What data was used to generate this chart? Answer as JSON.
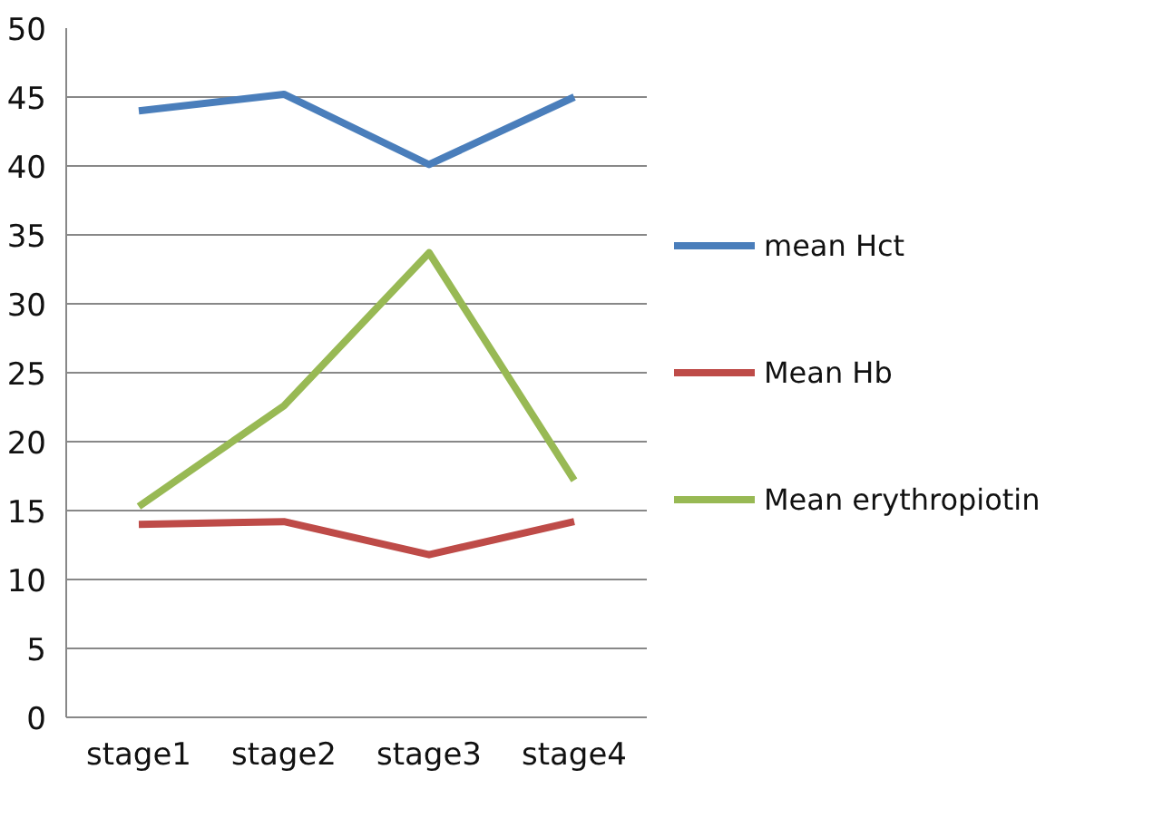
{
  "chart_data": {
    "type": "line",
    "categories": [
      "stage1",
      "stage2",
      "stage3",
      "stage4"
    ],
    "series": [
      {
        "name": "mean Hct",
        "color": "#4a7ebb",
        "values": [
          44.0,
          45.2,
          40.1,
          45.0
        ]
      },
      {
        "name": "Mean Hb",
        "color": "#be4b48",
        "values": [
          14.0,
          14.2,
          11.8,
          14.2
        ]
      },
      {
        "name": "Mean erythropiotin",
        "color": "#98b954",
        "values": [
          15.3,
          22.6,
          33.7,
          17.2
        ]
      }
    ],
    "ylim": [
      0,
      50
    ],
    "yticks": [
      0,
      5,
      10,
      15,
      20,
      25,
      30,
      35,
      40,
      45,
      50
    ],
    "grid": "y",
    "legend": "right",
    "marker": "none",
    "line_style": "solid"
  }
}
